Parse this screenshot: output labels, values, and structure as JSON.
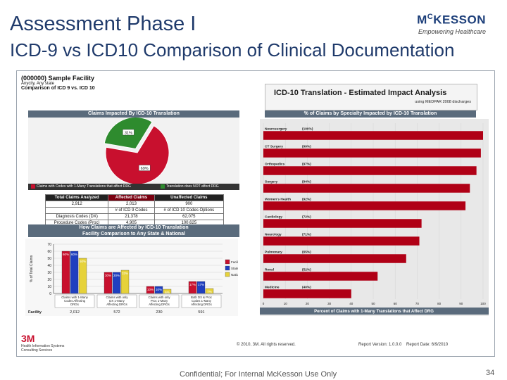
{
  "header": {
    "title": "Assessment Phase I",
    "subtitle": "ICD-9 vs ICD10 Comparison of Clinical Documentation"
  },
  "logo": {
    "brand_prefix": "M",
    "brand_sup": "C",
    "brand_rest": "KESSON",
    "tagline": "Empowering Healthcare"
  },
  "embedded": {
    "facility_title": "(000000) Sample Facility",
    "facility_loc": "Anycity, Any state",
    "facility_sub": "Comparison of ICD 9 vs. ICD 10",
    "impact_title": "ICD-10 Translation - Estimated Impact Analysis",
    "impact_sub": "using MEDPAR 2008 discharges",
    "pie": {
      "title": "Claims Impacted By ICD-10 Translation",
      "legend_a": "Claims with Codes with 1-Many Translations that affect DRG",
      "legend_b": "Translation does NOT affect DRG",
      "slices": [
        {
          "label": "69%",
          "value": 69,
          "color": "#c8102e"
        },
        {
          "label": "31%",
          "value": 31,
          "color": "#2e8b2e"
        }
      ]
    },
    "table": {
      "h1": "Total Claims Analyzed",
      "h2": "Affected Claims",
      "h3": "Unaffected Claims",
      "v1": "2,912",
      "v2": "2,013",
      "v3": "900",
      "sub2": "# of ICD 9 Codes",
      "sub3": "# of ICD 10 Codes Options",
      "r1_label": "Diagnosis Codes (DX)",
      "r1_a": "21,378",
      "r1_b": "62,075",
      "r2_label": "Procedure Codes (Proc)",
      "r2_a": "4,905",
      "r2_b": "100,625"
    },
    "bar": {
      "title": "How Claims are Affected by ICD-10 Translation",
      "title2": "Facility Comparison to Any State & National",
      "ylabel": "% of Total Claims",
      "yticks": [
        "70",
        "60",
        "50",
        "40",
        "30",
        "20",
        "10",
        "0"
      ],
      "series_names": [
        "Facility",
        "State",
        "National"
      ],
      "series_colors": [
        "#c8102e",
        "#1f3fbf",
        "#e6d23a"
      ],
      "groups": [
        {
          "label": "Claims with 1-Many Codes Affecting DRGs",
          "values": [
            60,
            60,
            50
          ],
          "labels": [
            "60%",
            "60%",
            "50%"
          ]
        },
        {
          "label": "Claims with only DX 1-Many Affecting DRGs",
          "values": [
            30,
            30,
            33
          ],
          "labels": [
            "30%",
            "30%",
            "33%"
          ]
        },
        {
          "label": "Claims with only Proc 1-Many Affecting DRGs",
          "values": [
            10,
            10,
            6
          ],
          "labels": [
            "10%",
            "10%",
            "6%"
          ]
        },
        {
          "label": "Both DX & Proc Codes 1-Many Affecting DRGs",
          "values": [
            17,
            17,
            7
          ],
          "labels": [
            "17%",
            "17%",
            "7%"
          ]
        }
      ],
      "row_label": "Facility",
      "row_values": [
        "2,012",
        "572",
        "230",
        "591"
      ]
    },
    "hbar": {
      "title": "% of Claims by Specialty Impacted by ICD-10 Translation",
      "xlabel": "Percent of Claims with 1-Many Translations that Affect DRG",
      "xticks": [
        "0",
        "10",
        "20",
        "30",
        "40",
        "50",
        "60",
        "70",
        "80",
        "90",
        "100"
      ],
      "items": [
        {
          "label": "Neurosurgery",
          "pct": "(100%)",
          "value": 100
        },
        {
          "label": "CT Surgery",
          "pct": "(99%)",
          "value": 99
        },
        {
          "label": "Orthopedics",
          "pct": "(97%)",
          "value": 97
        },
        {
          "label": "Surgery",
          "pct": "(94%)",
          "value": 94
        },
        {
          "label": "Women's Health",
          "pct": "(92%)",
          "value": 92
        },
        {
          "label": "Cardiology",
          "pct": "(72%)",
          "value": 72
        },
        {
          "label": "Neurology",
          "pct": "(71%)",
          "value": 71
        },
        {
          "label": "Pulmonary",
          "pct": "(65%)",
          "value": 65
        },
        {
          "label": "Renal",
          "pct": "(52%)",
          "value": 52
        },
        {
          "label": "Medicine",
          "pct": "(40%)",
          "value": 40
        }
      ]
    },
    "footer": {
      "mmm": "3M",
      "mmm_sub1": "Health Information Systems",
      "mmm_sub2": "Consulting Services",
      "copyright": "© 2010, 3M. All rights reserved.",
      "version": "Report Version: 1.0.0.0    Report Date: 6/9/2010"
    }
  },
  "footer": {
    "confidential": "Confidential; For Internal McKesson Use Only",
    "page": "34"
  }
}
